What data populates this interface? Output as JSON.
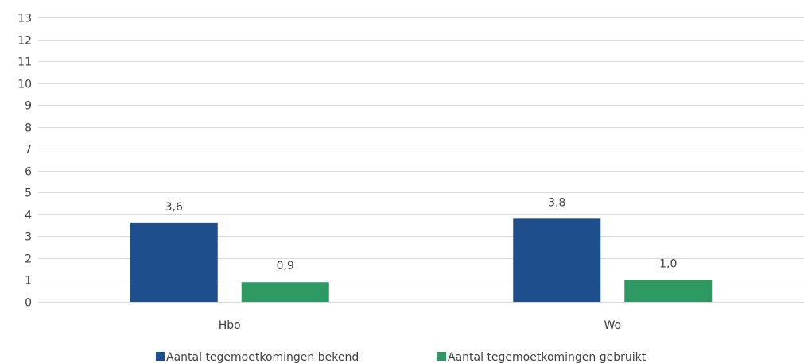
{
  "chart_data": {
    "type": "bar",
    "categories": [
      "Hbo",
      "Wo"
    ],
    "series": [
      {
        "name": "Aantal tegemoetkomingen bekend",
        "values": [
          3.6,
          3.8
        ],
        "labels": [
          "3,6",
          "3,8"
        ],
        "color": "#1f4e8c"
      },
      {
        "name": "Aantal tegemoetkomingen gebruikt",
        "values": [
          0.9,
          1.0
        ],
        "labels": [
          "0,9",
          "1,0"
        ],
        "color": "#2e9963"
      }
    ],
    "title": "",
    "xlabel": "",
    "ylabel": "",
    "ylim": [
      0,
      13
    ],
    "yticks": [
      "0",
      "1",
      "2",
      "3",
      "4",
      "5",
      "6",
      "7",
      "8",
      "9",
      "10",
      "11",
      "12",
      "13"
    ],
    "grid": true,
    "legend": "bottom"
  }
}
